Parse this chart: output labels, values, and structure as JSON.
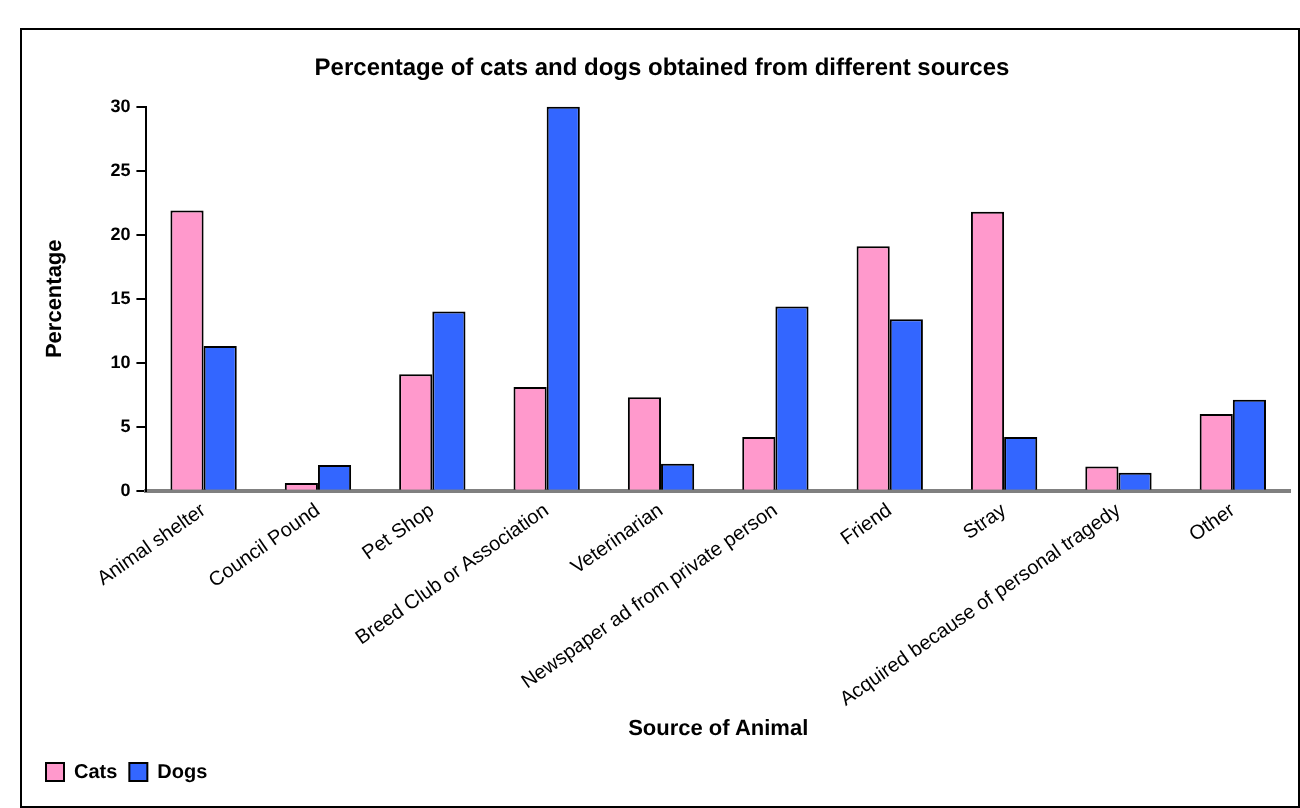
{
  "chart_data": {
    "type": "bar",
    "title": "Percentage of cats and dogs obtained from different sources",
    "xlabel": "Source of Animal",
    "ylabel": "Percentage",
    "categories": [
      "Animal shelter",
      "Council Pound",
      "Pet Shop",
      "Breed Club or Association",
      "Veterinarian",
      "Newspaper ad from private person",
      "Friend",
      "Stray",
      "Acquired because of personal tragedy",
      "Other"
    ],
    "series": [
      {
        "name": "Cats",
        "color": "#ff99cc",
        "values": [
          21.9,
          0.6,
          9.1,
          8.1,
          7.3,
          4.2,
          19.1,
          21.8,
          1.9,
          6.0
        ]
      },
      {
        "name": "Dogs",
        "color": "#3366ff",
        "values": [
          11.3,
          2.0,
          14.0,
          30.0,
          2.1,
          14.4,
          13.4,
          4.2,
          1.4,
          7.1
        ]
      }
    ],
    "ylim": [
      0,
      30
    ],
    "yticks": [
      0,
      5,
      10,
      15,
      20,
      25,
      30
    ],
    "grid": false,
    "legend": "bottom left"
  }
}
